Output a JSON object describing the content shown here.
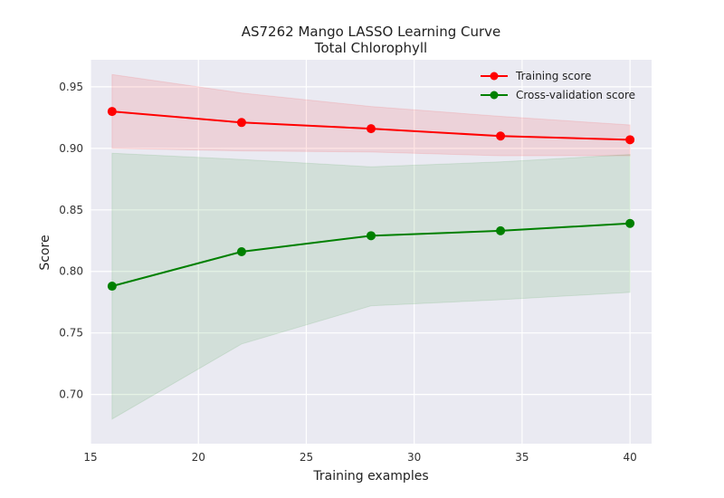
{
  "chart_data": {
    "type": "line",
    "title_line1": "AS7262 Mango LASSO Learning Curve",
    "title_line2": "Total Chlorophyll",
    "xlabel": "Training examples",
    "ylabel": "Score",
    "xlim": [
      15,
      41
    ],
    "ylim": [
      0.66,
      0.972
    ],
    "xticks": [
      15,
      20,
      25,
      30,
      35,
      40
    ],
    "xtick_labels": [
      "15",
      "20",
      "25",
      "30",
      "35",
      "40"
    ],
    "yticks": [
      0.7,
      0.75,
      0.8,
      0.85,
      0.9,
      0.95
    ],
    "ytick_labels": [
      "0.70",
      "0.75",
      "0.80",
      "0.85",
      "0.90",
      "0.95"
    ],
    "grid": true,
    "background": "#EAEAF2",
    "legend_position": "top-right",
    "x": [
      16,
      22,
      28,
      34,
      40
    ],
    "series": [
      {
        "name": "Training score",
        "color": "#ff0000",
        "fill_color": "#ff0000",
        "values": [
          0.93,
          0.921,
          0.916,
          0.91,
          0.907
        ],
        "band_upper": [
          0.96,
          0.945,
          0.934,
          0.926,
          0.919
        ],
        "band_lower": [
          0.9,
          0.898,
          0.897,
          0.894,
          0.894
        ]
      },
      {
        "name": "Cross-validation score",
        "color": "#008000",
        "fill_color": "#008000",
        "values": [
          0.788,
          0.816,
          0.829,
          0.833,
          0.839
        ],
        "band_upper": [
          0.896,
          0.891,
          0.885,
          0.889,
          0.895
        ],
        "band_lower": [
          0.68,
          0.741,
          0.772,
          0.777,
          0.783
        ]
      }
    ]
  }
}
